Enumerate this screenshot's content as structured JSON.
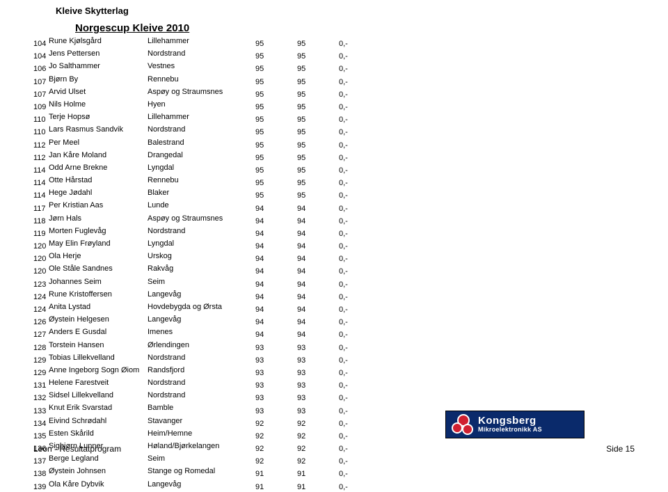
{
  "header": {
    "org": "Kleive Skytterlag",
    "title": "Norgescup Kleive 2010"
  },
  "footer": {
    "left": "Leon - Resultatprogram",
    "right": "Side 15"
  },
  "logo": {
    "line1": "Kongsberg",
    "line2": "Mikroelektronikk AS"
  },
  "rows": [
    {
      "rank": "104",
      "name": "Rune Kjølsgård",
      "club": "Lillehammer",
      "s1": "95",
      "s2": "95",
      "s3": "0,-"
    },
    {
      "rank": "104",
      "name": "Jens Pettersen",
      "club": "Nordstrand",
      "s1": "95",
      "s2": "95",
      "s3": "0,-"
    },
    {
      "rank": "106",
      "name": "Jo Salthammer",
      "club": "Vestnes",
      "s1": "95",
      "s2": "95",
      "s3": "0,-"
    },
    {
      "rank": "107",
      "name": "Bjørn By",
      "club": "Rennebu",
      "s1": "95",
      "s2": "95",
      "s3": "0,-"
    },
    {
      "rank": "107",
      "name": "Arvid Ulset",
      "club": "Aspøy og Straumsnes",
      "s1": "95",
      "s2": "95",
      "s3": "0,-"
    },
    {
      "rank": "109",
      "name": "Nils Holme",
      "club": "Hyen",
      "s1": "95",
      "s2": "95",
      "s3": "0,-"
    },
    {
      "rank": "110",
      "name": "Terje Hopsø",
      "club": "Lillehammer",
      "s1": "95",
      "s2": "95",
      "s3": "0,-"
    },
    {
      "rank": "110",
      "name": "Lars Rasmus Sandvik",
      "club": "Nordstrand",
      "s1": "95",
      "s2": "95",
      "s3": "0,-"
    },
    {
      "rank": "112",
      "name": "Per Meel",
      "club": "Balestrand",
      "s1": "95",
      "s2": "95",
      "s3": "0,-"
    },
    {
      "rank": "112",
      "name": "Jan Kåre Moland",
      "club": "Drangedal",
      "s1": "95",
      "s2": "95",
      "s3": "0,-"
    },
    {
      "rank": "114",
      "name": "Odd Arne Brekne",
      "club": "Lyngdal",
      "s1": "95",
      "s2": "95",
      "s3": "0,-"
    },
    {
      "rank": "114",
      "name": "Otte Hårstad",
      "club": "Rennebu",
      "s1": "95",
      "s2": "95",
      "s3": "0,-"
    },
    {
      "rank": "114",
      "name": "Hege Jødahl",
      "club": "Blaker",
      "s1": "95",
      "s2": "95",
      "s3": "0,-"
    },
    {
      "rank": "117",
      "name": "Per Kristian Aas",
      "club": "Lunde",
      "s1": "94",
      "s2": "94",
      "s3": "0,-"
    },
    {
      "rank": "118",
      "name": "Jørn Hals",
      "club": "Aspøy og Straumsnes",
      "s1": "94",
      "s2": "94",
      "s3": "0,-"
    },
    {
      "rank": "119",
      "name": "Morten Fuglevåg",
      "club": "Nordstrand",
      "s1": "94",
      "s2": "94",
      "s3": "0,-"
    },
    {
      "rank": "120",
      "name": "May Elin Frøyland",
      "club": "Lyngdal",
      "s1": "94",
      "s2": "94",
      "s3": "0,-"
    },
    {
      "rank": "120",
      "name": "Ola Herje",
      "club": "Urskog",
      "s1": "94",
      "s2": "94",
      "s3": "0,-"
    },
    {
      "rank": "120",
      "name": "Ole Ståle Sandnes",
      "club": "Rakvåg",
      "s1": "94",
      "s2": "94",
      "s3": "0,-"
    },
    {
      "rank": "123",
      "name": "Johannes Seim",
      "club": "Seim",
      "s1": "94",
      "s2": "94",
      "s3": "0,-"
    },
    {
      "rank": "124",
      "name": "Rune Kristoffersen",
      "club": "Langevåg",
      "s1": "94",
      "s2": "94",
      "s3": "0,-"
    },
    {
      "rank": "124",
      "name": "Anita Lystad",
      "club": "Hovdebygda og Ørsta",
      "s1": "94",
      "s2": "94",
      "s3": "0,-"
    },
    {
      "rank": "126",
      "name": "Øystein Helgesen",
      "club": "Langevåg",
      "s1": "94",
      "s2": "94",
      "s3": "0,-"
    },
    {
      "rank": "127",
      "name": "Anders E Gusdal",
      "club": "Imenes",
      "s1": "94",
      "s2": "94",
      "s3": "0,-"
    },
    {
      "rank": "128",
      "name": "Torstein Hansen",
      "club": "Ørlendingen",
      "s1": "93",
      "s2": "93",
      "s3": "0,-"
    },
    {
      "rank": "129",
      "name": "Tobias Lillekvelland",
      "club": "Nordstrand",
      "s1": "93",
      "s2": "93",
      "s3": "0,-"
    },
    {
      "rank": "129",
      "name": "Anne Ingeborg Sogn Øiom",
      "club": "Randsfjord",
      "s1": "93",
      "s2": "93",
      "s3": "0,-"
    },
    {
      "rank": "131",
      "name": "Helene Farestveit",
      "club": "Nordstrand",
      "s1": "93",
      "s2": "93",
      "s3": "0,-"
    },
    {
      "rank": "132",
      "name": "Sidsel Lillekvelland",
      "club": "Nordstrand",
      "s1": "93",
      "s2": "93",
      "s3": "0,-"
    },
    {
      "rank": "133",
      "name": "Knut Erik Svarstad",
      "club": "Bamble",
      "s1": "93",
      "s2": "93",
      "s3": "0,-"
    },
    {
      "rank": "134",
      "name": "Eivind Schrødahl",
      "club": "Stavanger",
      "s1": "92",
      "s2": "92",
      "s3": "0,-"
    },
    {
      "rank": "135",
      "name": "Esten Skårild",
      "club": "Heim/Hemne",
      "s1": "92",
      "s2": "92",
      "s3": "0,-"
    },
    {
      "rank": "136",
      "name": "Sigbjørn Lunner",
      "club": "Høland/Bjørkelangen",
      "s1": "92",
      "s2": "92",
      "s3": "0,-"
    },
    {
      "rank": "137",
      "name": "Berge Legland",
      "club": "Seim",
      "s1": "92",
      "s2": "92",
      "s3": "0,-"
    },
    {
      "rank": "138",
      "name": "Øystein Johnsen",
      "club": "Stange og Romedal",
      "s1": "91",
      "s2": "91",
      "s3": "0,-"
    },
    {
      "rank": "139",
      "name": "Ola Kåre Dybvik",
      "club": "Langevåg",
      "s1": "91",
      "s2": "91",
      "s3": "0,-"
    }
  ]
}
